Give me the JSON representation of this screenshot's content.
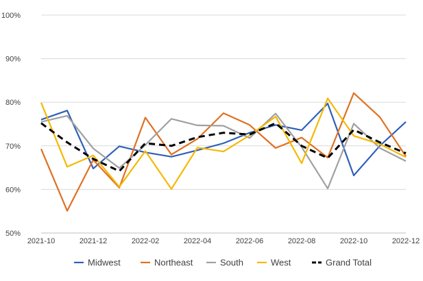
{
  "chart_data": {
    "type": "line",
    "title": "",
    "xlabel": "",
    "ylabel": "",
    "ylim": [
      0.5,
      1.0
    ],
    "y_ticks": [
      "50%",
      "60%",
      "70%",
      "80%",
      "90%",
      "100%"
    ],
    "x": [
      "2021-10",
      "2021-11",
      "2021-12",
      "2022-01",
      "2022-02",
      "2022-03",
      "2022-04",
      "2022-05",
      "2022-06",
      "2022-07",
      "2022-08",
      "2022-09",
      "2022-10",
      "2022-11",
      "2022-12"
    ],
    "x_tick_labels": [
      "2021-10",
      "2021-12",
      "2022-02",
      "2022-04",
      "2022-06",
      "2022-08",
      "2022-10",
      "2022-12"
    ],
    "grid": "horizontal",
    "legend_position": "bottom",
    "series": [
      {
        "name": "Midwest",
        "color": "#2e5fb8",
        "dashed": false,
        "values": [
          0.76,
          0.781,
          0.648,
          0.699,
          0.685,
          0.675,
          0.69,
          0.706,
          0.73,
          0.748,
          0.736,
          0.797,
          0.632,
          0.7,
          0.755
        ]
      },
      {
        "name": "Northeast",
        "color": "#e07020",
        "dashed": false,
        "values": [
          0.693,
          0.551,
          0.668,
          0.604,
          0.765,
          0.68,
          0.716,
          0.775,
          0.748,
          0.695,
          0.719,
          0.673,
          0.821,
          0.766,
          0.676
        ]
      },
      {
        "name": "South",
        "color": "#a0a0a0",
        "dashed": false,
        "values": [
          0.755,
          0.769,
          0.694,
          0.649,
          0.702,
          0.762,
          0.747,
          0.746,
          0.718,
          0.774,
          0.697,
          0.602,
          0.751,
          0.695,
          0.665
        ]
      },
      {
        "name": "West",
        "color": "#f5b800",
        "dashed": false,
        "values": [
          0.799,
          0.652,
          0.678,
          0.606,
          0.688,
          0.601,
          0.696,
          0.687,
          0.724,
          0.767,
          0.66,
          0.809,
          0.723,
          0.704,
          0.674
        ]
      },
      {
        "name": "Grand Total",
        "color": "#000000",
        "dashed": true,
        "values": [
          0.752,
          0.708,
          0.67,
          0.642,
          0.706,
          0.7,
          0.72,
          0.73,
          0.726,
          0.752,
          0.7,
          0.672,
          0.737,
          0.708,
          0.683
        ]
      }
    ]
  }
}
